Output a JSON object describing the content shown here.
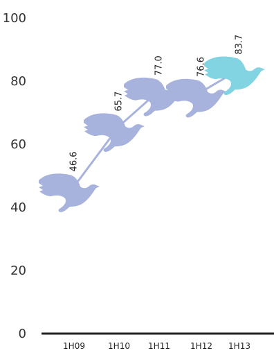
{
  "chart_data": {
    "type": "line",
    "title": "",
    "xlabel": "",
    "ylabel": "",
    "categories": [
      "1H09",
      "1H10",
      "1H11",
      "1H12",
      "1H13"
    ],
    "values": [
      46.6,
      65.7,
      77.0,
      76.6,
      83.7
    ],
    "value_labels": [
      "46.6",
      "65.7",
      "77.0",
      "76.6",
      "83.7"
    ],
    "ylim": [
      0,
      100
    ],
    "yticks": [
      "0",
      "20",
      "40",
      "60",
      "80",
      "100"
    ],
    "grid": false,
    "legend": "none",
    "marker": "dove-icon",
    "colors": {
      "primary": "#a7b3dc",
      "highlight": "#82d4e3",
      "line": "#a7b3dc",
      "axis": "#222222",
      "text": "#333333"
    }
  }
}
